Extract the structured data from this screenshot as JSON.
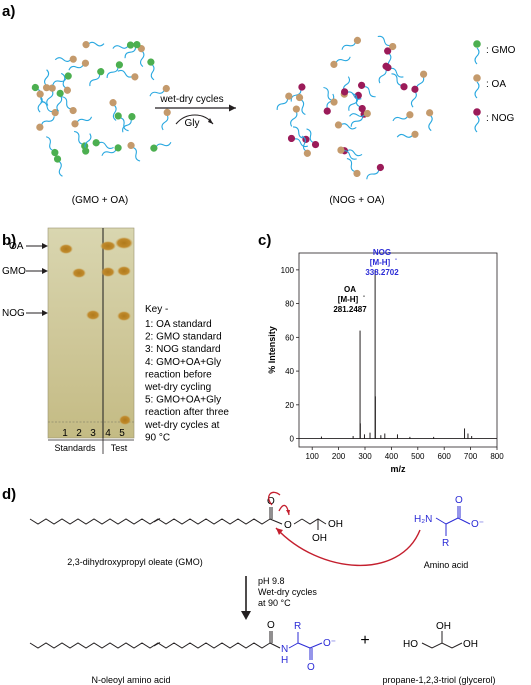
{
  "panels": {
    "a": {
      "label": "a)",
      "left_caption": "(GMO + OA)",
      "right_caption": "(NOG + OA)",
      "arrow_top": "wet-dry cycles",
      "arrow_bottom": "Gly",
      "legend": [
        {
          "text": ": GMO",
          "color": "#4caf50"
        },
        {
          "text": ": OA",
          "color": "#c49a6c"
        },
        {
          "text": ": NOG",
          "color": "#9b1b59"
        }
      ],
      "tail_color": "#29a8e0"
    },
    "b": {
      "label": "b)",
      "markers": [
        "OA",
        "GMO",
        "NOG"
      ],
      "lanes": [
        "1",
        "2",
        "3",
        "4",
        "5"
      ],
      "group_standards": "Standards",
      "group_test": "Test",
      "key_title": "Key -",
      "key": [
        "1: OA standard",
        "2: GMO standard",
        "3: NOG standard",
        "4: GMO+OA+Gly",
        "reaction before",
        "wet-dry cycling",
        "5: GMO+OA+Gly",
        "reaction after three",
        "wet-dry cycles at",
        "90 °C"
      ]
    },
    "c": {
      "label": "c)",
      "oa_label": [
        "OA",
        "[M-H]",
        "281.2487"
      ],
      "nog_label": [
        "NOG",
        "[M-H]",
        "338.2702"
      ],
      "minus": "-"
    },
    "d": {
      "label": "d)",
      "gmo_name": "2,3-dihydroxypropyl oleate (GMO)",
      "amino_acid_name": "Amino acid",
      "conditions": [
        "pH 9.8",
        "Wet-dry cycles",
        "at 90 °C"
      ],
      "product_name": "N-oleoyl amino acid",
      "glycerol_name": "propane-1,2,3-triol (glycerol)",
      "plus": "+",
      "atoms": {
        "O": "O",
        "OH": "OH",
        "HO": "HO",
        "H2N": "H₂N",
        "N": "N",
        "H": "H",
        "R": "R",
        "Ominus": "O⁻"
      },
      "blue": "#2b2bd6",
      "red": "#c41f2e"
    }
  },
  "chart_data": {
    "type": "bar",
    "title": "",
    "xlabel": "m/z",
    "ylabel": "% Intensity",
    "xlim": [
      50,
      800
    ],
    "ylim": [
      -5,
      110
    ],
    "xticks": [
      100,
      200,
      300,
      400,
      500,
      600,
      700,
      800
    ],
    "yticks": [
      0,
      20,
      40,
      60,
      80,
      100
    ],
    "peaks": [
      {
        "mz": 281.2487,
        "intensity": 64
      },
      {
        "mz": 338.2702,
        "intensity": 100
      },
      {
        "mz": 339.3,
        "intensity": 25
      },
      {
        "mz": 282.3,
        "intensity": 9
      },
      {
        "mz": 135,
        "intensity": 1.2
      },
      {
        "mz": 255,
        "intensity": 1.5
      },
      {
        "mz": 298,
        "intensity": 2.5
      },
      {
        "mz": 319,
        "intensity": 3.5
      },
      {
        "mz": 360,
        "intensity": 2
      },
      {
        "mz": 375,
        "intensity": 3
      },
      {
        "mz": 423,
        "intensity": 2.5
      },
      {
        "mz": 470,
        "intensity": 1
      },
      {
        "mz": 560,
        "intensity": 1
      },
      {
        "mz": 677,
        "intensity": 6
      },
      {
        "mz": 690,
        "intensity": 3
      },
      {
        "mz": 704,
        "intensity": 1.5
      }
    ]
  }
}
